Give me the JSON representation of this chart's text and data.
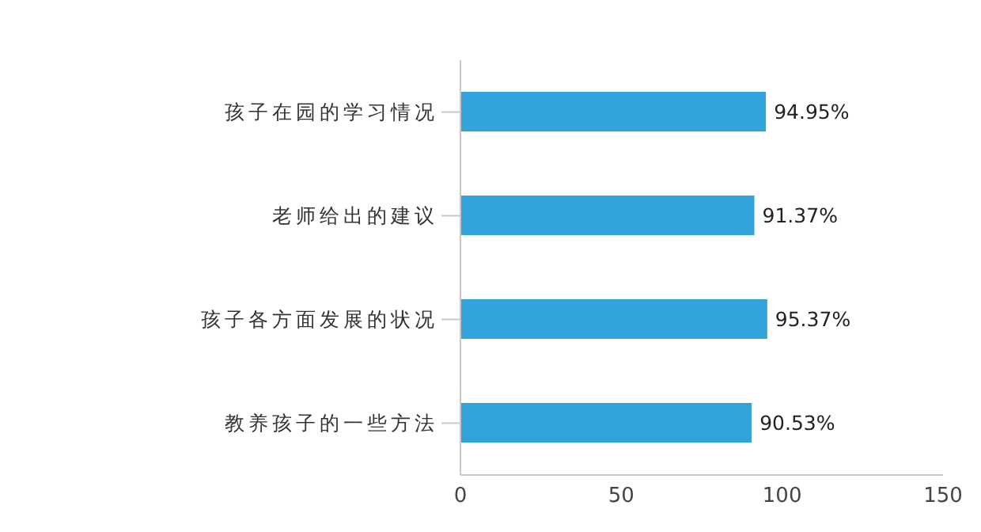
{
  "chart_data": {
    "type": "bar",
    "orientation": "horizontal",
    "categories": [
      "孩子在园的学习情况",
      "老师给出的建议",
      "孩子各方面发展的状况",
      "教养孩子的一些方法"
    ],
    "values": [
      94.95,
      91.37,
      95.37,
      90.53
    ],
    "value_labels": [
      "94.95%",
      "91.37%",
      "95.37%",
      "90.53%"
    ],
    "color": "#33a3dc",
    "xlim": [
      0,
      150
    ],
    "xticks": [
      0,
      50,
      100,
      150
    ],
    "grid": false,
    "legend": false
  }
}
